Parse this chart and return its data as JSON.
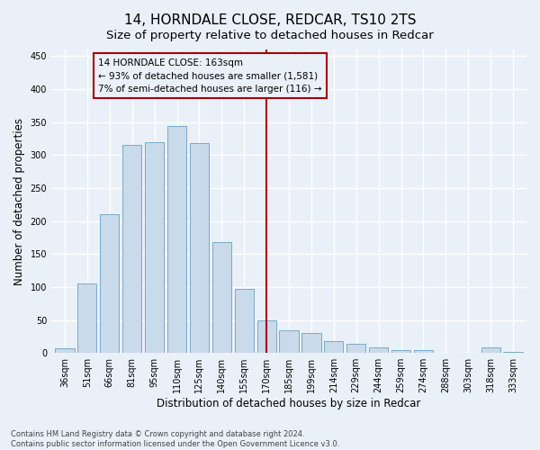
{
  "title": "14, HORNDALE CLOSE, REDCAR, TS10 2TS",
  "subtitle": "Size of property relative to detached houses in Redcar",
  "xlabel": "Distribution of detached houses by size in Redcar",
  "ylabel": "Number of detached properties",
  "categories": [
    "36sqm",
    "51sqm",
    "66sqm",
    "81sqm",
    "95sqm",
    "110sqm",
    "125sqm",
    "140sqm",
    "155sqm",
    "170sqm",
    "185sqm",
    "199sqm",
    "214sqm",
    "229sqm",
    "244sqm",
    "259sqm",
    "274sqm",
    "288sqm",
    "303sqm",
    "318sqm",
    "333sqm"
  ],
  "values": [
    7,
    105,
    210,
    315,
    320,
    344,
    318,
    168,
    97,
    50,
    35,
    30,
    18,
    14,
    8,
    4,
    4,
    0,
    0,
    8,
    2
  ],
  "bar_color": "#c9daea",
  "bar_edge_color": "#7aaac8",
  "vline_x_index": 9.0,
  "vline_color": "#aa0000",
  "annotation_text": "14 HORNDALE CLOSE: 163sqm\n← 93% of detached houses are smaller (1,581)\n7% of semi-detached houses are larger (116) →",
  "annotation_box_color": "#aa0000",
  "ylim": [
    0,
    460
  ],
  "yticks": [
    0,
    50,
    100,
    150,
    200,
    250,
    300,
    350,
    400,
    450
  ],
  "footer": "Contains HM Land Registry data © Crown copyright and database right 2024.\nContains public sector information licensed under the Open Government Licence v3.0.",
  "bg_color": "#eaf0f8",
  "grid_color": "#ffffff",
  "title_fontsize": 11,
  "subtitle_fontsize": 9.5,
  "tick_fontsize": 7,
  "ylabel_fontsize": 8.5,
  "xlabel_fontsize": 8.5,
  "footer_fontsize": 6,
  "annot_fontsize": 7.5
}
